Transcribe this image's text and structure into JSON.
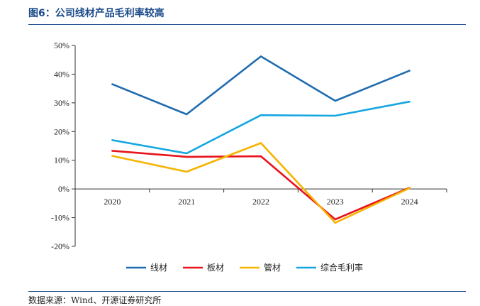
{
  "figure_label": "图6：公司线材产品毛利率较高",
  "source_note": "数据来源：Wind、开源证券研究所",
  "chart_data": {
    "type": "line",
    "title": "公司线材产品毛利率较高",
    "xlabel": "",
    "ylabel": "",
    "categories": [
      "2020",
      "2021",
      "2022",
      "2023",
      "2024"
    ],
    "ylim": [
      -20,
      50
    ],
    "yticks": [
      -20,
      -10,
      0,
      10,
      20,
      30,
      40,
      50
    ],
    "ytick_labels": [
      "-20%",
      "-10%",
      "0%",
      "10%",
      "20%",
      "30%",
      "40%",
      "50%"
    ],
    "grid": false,
    "legend_position": "bottom",
    "series": [
      {
        "name": "线材",
        "color": "#1f6cb0",
        "values": [
          36.5,
          26.0,
          46.2,
          30.7,
          41.2
        ]
      },
      {
        "name": "板材",
        "color": "#e8131b",
        "values": [
          13.3,
          11.2,
          11.4,
          -10.6,
          0.4
        ]
      },
      {
        "name": "管材",
        "color": "#f5b400",
        "values": [
          11.5,
          6.0,
          16.0,
          -11.8,
          0.3
        ]
      },
      {
        "name": "综合毛利率",
        "color": "#15a6e0",
        "values": [
          17.0,
          12.4,
          25.7,
          25.5,
          30.4
        ]
      }
    ]
  }
}
